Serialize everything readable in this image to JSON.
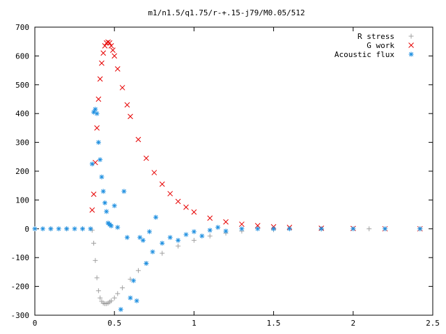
{
  "chart_data": {
    "type": "scatter",
    "title": "m1/n1.5/q1.75/r-+.15-j79/M0.05/512",
    "xlabel": "",
    "ylabel": "",
    "xlim": [
      0,
      2.5
    ],
    "ylim": [
      -300,
      700
    ],
    "x_ticks": [
      0,
      0.5,
      1,
      1.5,
      2,
      2.5
    ],
    "x_tick_labels": [
      "0",
      "0.5",
      "1",
      "1.5",
      "2",
      "2.5"
    ],
    "y_ticks": [
      -300,
      -200,
      -100,
      0,
      100,
      200,
      300,
      400,
      500,
      600,
      700
    ],
    "y_tick_labels": [
      "-300",
      "-200",
      "-100",
      "0",
      "100",
      "200",
      "300",
      "400",
      "500",
      "600",
      "700"
    ],
    "grid": false,
    "legend_position": "top-right",
    "series": [
      {
        "name": "R stress",
        "marker": "+",
        "color": "#a0a0a0",
        "x": [
          0.0,
          0.1,
          0.2,
          0.3,
          0.36,
          0.37,
          0.38,
          0.39,
          0.4,
          0.41,
          0.42,
          0.43,
          0.44,
          0.45,
          0.46,
          0.47,
          0.48,
          0.5,
          0.52,
          0.55,
          0.6,
          0.65,
          0.7,
          0.8,
          0.9,
          1.0,
          1.1,
          1.2,
          1.3,
          1.5,
          1.8,
          2.1,
          2.42
        ],
        "y": [
          0,
          0,
          0,
          0,
          -5,
          -50,
          -110,
          -170,
          -215,
          -240,
          -252,
          -258,
          -260,
          -260,
          -258,
          -254,
          -250,
          -240,
          -225,
          -205,
          -175,
          -145,
          -120,
          -85,
          -60,
          -40,
          -25,
          -15,
          -8,
          -3,
          -1,
          0,
          0
        ]
      },
      {
        "name": "G work",
        "marker": "x",
        "color": "#e60000",
        "x": [
          0.36,
          0.37,
          0.38,
          0.39,
          0.4,
          0.41,
          0.42,
          0.43,
          0.44,
          0.45,
          0.46,
          0.47,
          0.48,
          0.49,
          0.5,
          0.52,
          0.55,
          0.58,
          0.6,
          0.65,
          0.7,
          0.75,
          0.8,
          0.85,
          0.9,
          0.95,
          1.0,
          1.1,
          1.2,
          1.3,
          1.4,
          1.5,
          1.6,
          1.8,
          2.0,
          2.2,
          2.42
        ],
        "y": [
          65,
          120,
          230,
          350,
          450,
          520,
          575,
          610,
          635,
          645,
          648,
          645,
          635,
          620,
          600,
          555,
          490,
          430,
          390,
          310,
          245,
          195,
          155,
          122,
          95,
          75,
          58,
          37,
          24,
          16,
          11,
          7,
          5,
          2,
          1,
          0,
          0
        ]
      },
      {
        "name": "Acoustic flux",
        "marker": "*",
        "color": "#1e8fe0",
        "x": [
          0.0,
          0.05,
          0.1,
          0.15,
          0.2,
          0.25,
          0.3,
          0.35,
          0.36,
          0.37,
          0.38,
          0.39,
          0.4,
          0.41,
          0.42,
          0.43,
          0.44,
          0.45,
          0.46,
          0.47,
          0.48,
          0.5,
          0.52,
          0.54,
          0.56,
          0.58,
          0.6,
          0.62,
          0.64,
          0.66,
          0.68,
          0.7,
          0.72,
          0.74,
          0.76,
          0.8,
          0.85,
          0.9,
          0.95,
          1.0,
          1.05,
          1.1,
          1.15,
          1.2,
          1.3,
          1.4,
          1.5,
          1.6,
          1.8,
          2.0,
          2.2,
          2.42
        ],
        "y": [
          0,
          0,
          0,
          0,
          0,
          0,
          0,
          0,
          225,
          405,
          415,
          400,
          300,
          240,
          180,
          130,
          90,
          60,
          20,
          15,
          10,
          80,
          5,
          -280,
          130,
          -30,
          -240,
          -180,
          -250,
          -30,
          -40,
          -120,
          -10,
          -80,
          40,
          -50,
          -30,
          -40,
          -20,
          -10,
          -25,
          -5,
          5,
          -8,
          0,
          0,
          0,
          0,
          0,
          0,
          0,
          0
        ]
      }
    ]
  }
}
